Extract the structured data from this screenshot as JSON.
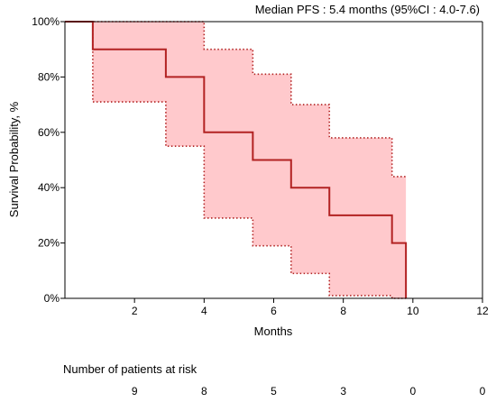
{
  "chart_data": {
    "type": "line",
    "title": "",
    "annotation": "Median PFS : 5.4 months (95%CI : 4.0-7.6)",
    "xlabel": "Months",
    "ylabel": "Survival Probability, %",
    "xlim": [
      0,
      12
    ],
    "ylim": [
      0,
      100
    ],
    "x_ticks": [
      2,
      4,
      6,
      8,
      10,
      12
    ],
    "y_ticks": [
      0,
      20,
      40,
      60,
      80,
      100
    ],
    "y_tick_labels": [
      "0%",
      "20%",
      "40%",
      "60%",
      "80%",
      "100%"
    ],
    "grid": false,
    "series": [
      {
        "role": "estimate",
        "color": "#b22222",
        "x": [
          0,
          0.8,
          0.8,
          2.9,
          2.9,
          4.0,
          4.0,
          5.4,
          5.4,
          6.5,
          6.5,
          7.6,
          7.6,
          9.4,
          9.4,
          9.8,
          9.8
        ],
        "y": [
          100,
          100,
          90,
          90,
          80,
          80,
          60,
          60,
          50,
          50,
          40,
          40,
          30,
          30,
          20,
          20,
          0
        ]
      },
      {
        "role": "ci-upper",
        "color": "#b22222",
        "x": [
          0,
          0.8,
          0.8,
          4.0,
          4.0,
          5.4,
          5.4,
          6.5,
          6.5,
          7.6,
          7.6,
          9.4,
          9.4,
          9.8
        ],
        "y": [
          100,
          100,
          100,
          100,
          90,
          90,
          81,
          81,
          70,
          70,
          58,
          58,
          44,
          44
        ]
      },
      {
        "role": "ci-lower",
        "color": "#b22222",
        "x": [
          0,
          0.8,
          0.8,
          2.9,
          2.9,
          4.0,
          4.0,
          5.4,
          5.4,
          6.5,
          6.5,
          7.6,
          7.6,
          9.4,
          9.4,
          9.8
        ],
        "y": [
          100,
          100,
          71,
          71,
          55,
          55,
          29,
          29,
          19,
          19,
          9,
          9,
          1,
          1,
          0,
          0
        ]
      }
    ],
    "ci_fill_color": "#ffc9cc",
    "risk_table": {
      "title": "Number of patients at risk",
      "times": [
        2,
        4,
        6,
        8,
        10,
        12
      ],
      "counts": [
        "9",
        "8",
        "5",
        "3",
        "0",
        "0"
      ]
    }
  }
}
